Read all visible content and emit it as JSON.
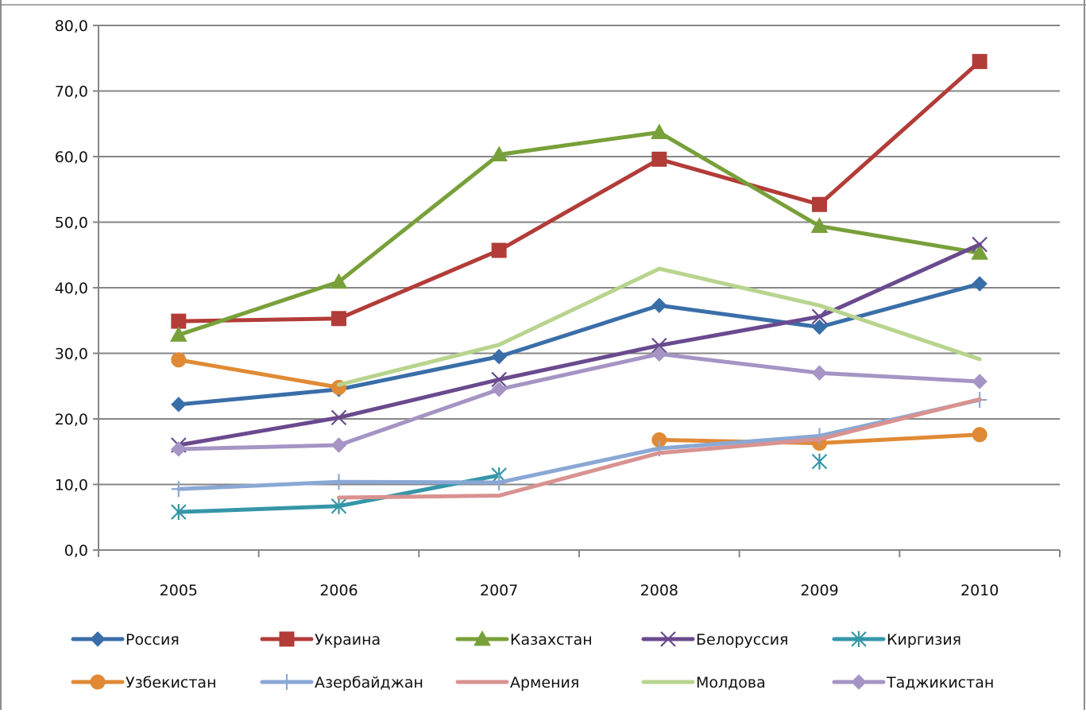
{
  "chart_data": {
    "type": "line",
    "title": "",
    "xlabel": "",
    "ylabel": "",
    "x": [
      "2005",
      "2006",
      "2007",
      "2008",
      "2009",
      "2010"
    ],
    "y_ticks": [
      "0,0",
      "10,0",
      "20,0",
      "30,0",
      "40,0",
      "50,0",
      "60,0",
      "70,0",
      "80,0"
    ],
    "ylim": [
      0,
      80
    ],
    "grid": true,
    "legend_position": "bottom",
    "series": [
      {
        "name": "Россия",
        "color": "#3a6ea8",
        "marker": "diamond",
        "values": [
          22.2,
          24.5,
          29.5,
          37.3,
          34.0,
          40.6
        ]
      },
      {
        "name": "Украина",
        "color": "#b23c38",
        "marker": "square",
        "values": [
          34.9,
          35.3,
          45.7,
          59.6,
          52.7,
          74.5
        ]
      },
      {
        "name": "Казахстан",
        "color": "#78a03a",
        "marker": "triangle",
        "values": [
          32.8,
          40.9,
          60.3,
          63.7,
          49.4,
          45.3
        ]
      },
      {
        "name": "Белоруссия",
        "color": "#6a4a8e",
        "marker": "x",
        "values": [
          16.0,
          20.2,
          26.0,
          31.2,
          35.6,
          46.6
        ]
      },
      {
        "name": "Киргизия",
        "color": "#3596a8",
        "marker": "asterisk",
        "values": [
          5.8,
          6.7,
          11.4,
          null,
          13.5,
          null
        ]
      },
      {
        "name": "Узбекистан",
        "color": "#e08a35",
        "marker": "circle",
        "values": [
          29.0,
          24.8,
          null,
          16.8,
          16.3,
          17.6
        ]
      },
      {
        "name": "Азербайджан",
        "color": "#8aa8d4",
        "marker": "plus",
        "values": [
          9.3,
          10.4,
          10.3,
          15.5,
          17.4,
          22.9
        ]
      },
      {
        "name": "Армения",
        "color": "#d89290",
        "marker": "none",
        "values": [
          null,
          8.0,
          8.3,
          14.8,
          16.9,
          23.0
        ]
      },
      {
        "name": "Молдова",
        "color": "#b8d48e",
        "marker": "none",
        "values": [
          null,
          25.2,
          31.3,
          42.9,
          37.3,
          29.1
        ]
      },
      {
        "name": "Таджикистан",
        "color": "#a594c4",
        "marker": "diamond",
        "values": [
          15.4,
          16.0,
          24.5,
          29.9,
          27.0,
          25.7
        ]
      }
    ]
  }
}
